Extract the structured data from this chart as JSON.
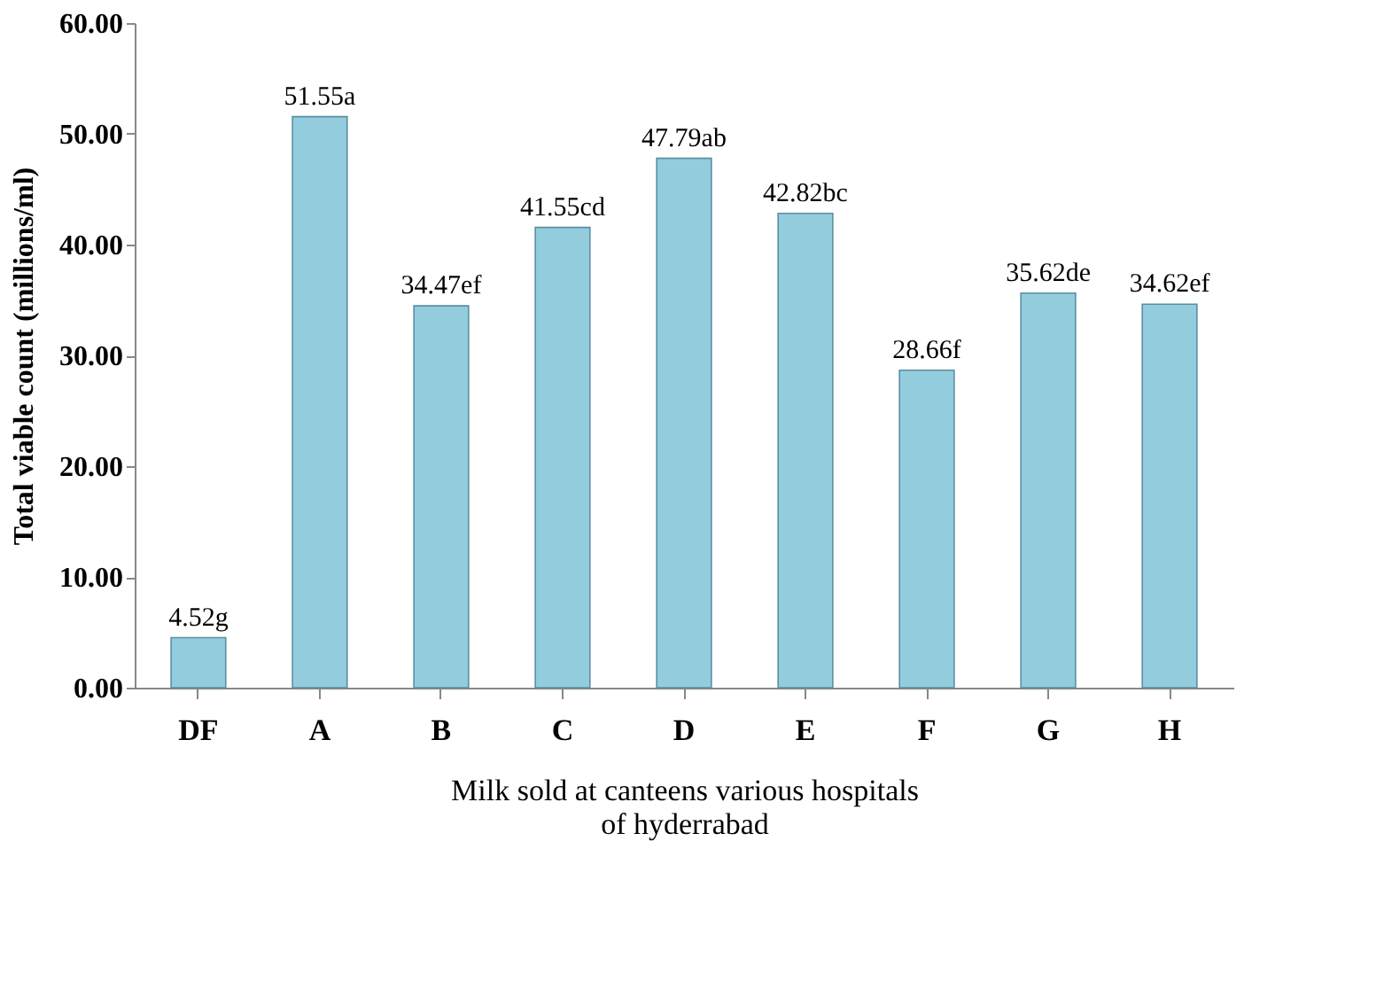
{
  "chart_data": {
    "type": "bar",
    "xlabel": "Milk sold at canteens various hospitals\nof hyderrabad",
    "ylabel": "Total viable count (millions/ml)",
    "categories": [
      "DF",
      "A",
      "B",
      "C",
      "D",
      "E",
      "F",
      "G",
      "H"
    ],
    "values": [
      4.52,
      51.55,
      34.47,
      41.55,
      47.79,
      42.82,
      28.66,
      35.62,
      34.62
    ],
    "value_labels": [
      "4.52g",
      "51.55a",
      "34.47ef",
      "41.55cd",
      "47.79ab",
      "42.82bc",
      "28.66f",
      "35.62de",
      "34.62ef"
    ],
    "color": "#93cddd",
    "ylim": [
      0,
      60
    ],
    "yticks": [
      {
        "value": 0,
        "label": "0.00"
      },
      {
        "value": 10,
        "label": "10.00"
      },
      {
        "value": 20,
        "label": "20.00"
      },
      {
        "value": 30,
        "label": "30.00"
      },
      {
        "value": 40,
        "label": "40.00"
      },
      {
        "value": 50,
        "label": "50.00"
      },
      {
        "value": 60,
        "label": "60.00"
      }
    ],
    "grid": false
  }
}
